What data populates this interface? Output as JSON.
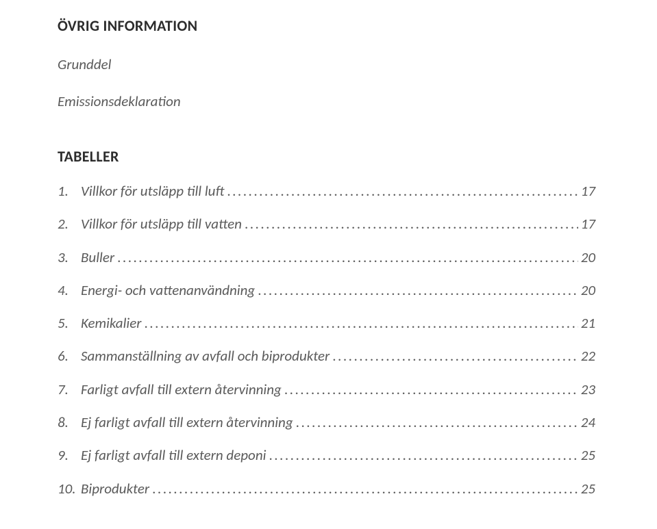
{
  "colors": {
    "text_dark": "#2c2c2c",
    "text_italic": "#5a5a5a",
    "background": "#ffffff"
  },
  "typography": {
    "heading_fontsize_pt": 17,
    "body_fontsize_pt": 16,
    "font_family": "Calibri",
    "heading_weight": 700,
    "italic_sections": true
  },
  "headings": {
    "main": "ÖVRIG INFORMATION",
    "sub1": "Grunddel",
    "sub2": "Emissionsdeklaration",
    "tables": "TABELLER"
  },
  "toc": [
    {
      "num": "1.",
      "title": "Villkor för utsläpp till luft",
      "page": "17"
    },
    {
      "num": "2.",
      "title": "Villkor för utsläpp till vatten",
      "page": "17"
    },
    {
      "num": "3.",
      "title": "Buller",
      "page": "20"
    },
    {
      "num": "4.",
      "title": "Energi- och vattenanvändning",
      "page": "20"
    },
    {
      "num": "5.",
      "title": "Kemikalier",
      "page": "21"
    },
    {
      "num": "6.",
      "title": "Sammanställning av avfall och biprodukter",
      "page": "22"
    },
    {
      "num": "7.",
      "title": "Farligt avfall till extern återvinning",
      "page": "23"
    },
    {
      "num": "8.",
      "title": "Ej farligt avfall till extern återvinning",
      "page": "24"
    },
    {
      "num": "9.",
      "title": "Ej farligt avfall till extern deponi",
      "page": "25"
    },
    {
      "num": "10.",
      "title": "Biprodukter",
      "page": "25"
    }
  ],
  "leader_char": "."
}
